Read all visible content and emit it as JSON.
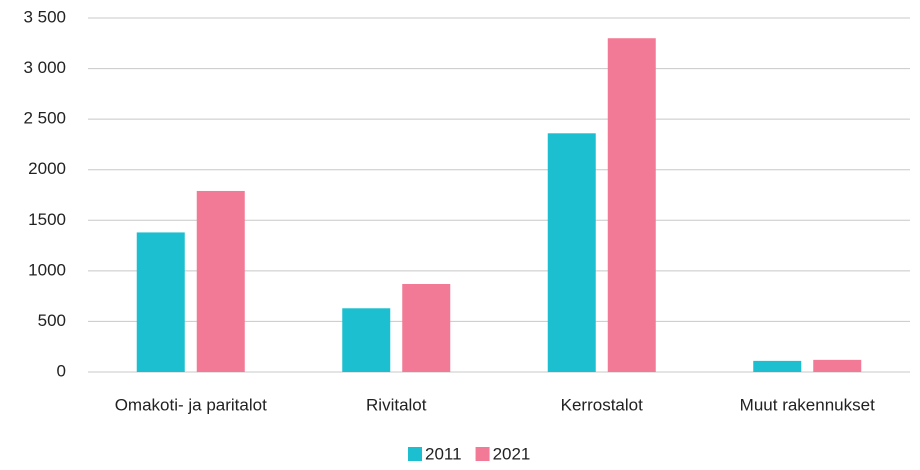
{
  "chart_data": {
    "type": "bar",
    "categories": [
      "Omakoti- ja paritalot",
      "Rivitalot",
      "Kerrostalot",
      "Muut rakennukset"
    ],
    "series": [
      {
        "name": "2011",
        "color": "#1bbfcf",
        "values": [
          1380,
          630,
          2360,
          110
        ]
      },
      {
        "name": "2021",
        "color": "#f27a96",
        "values": [
          1790,
          870,
          3300,
          120
        ]
      }
    ],
    "ylim": [
      0,
      3500
    ],
    "yticks": [
      0,
      500,
      1000,
      1500,
      2000,
      {
        "value": 2500,
        "label": "2 500"
      },
      {
        "value": 3000,
        "label": "3 000"
      },
      {
        "value": 3500,
        "label": "3 500"
      }
    ],
    "grid": true,
    "legend": "bottom"
  }
}
